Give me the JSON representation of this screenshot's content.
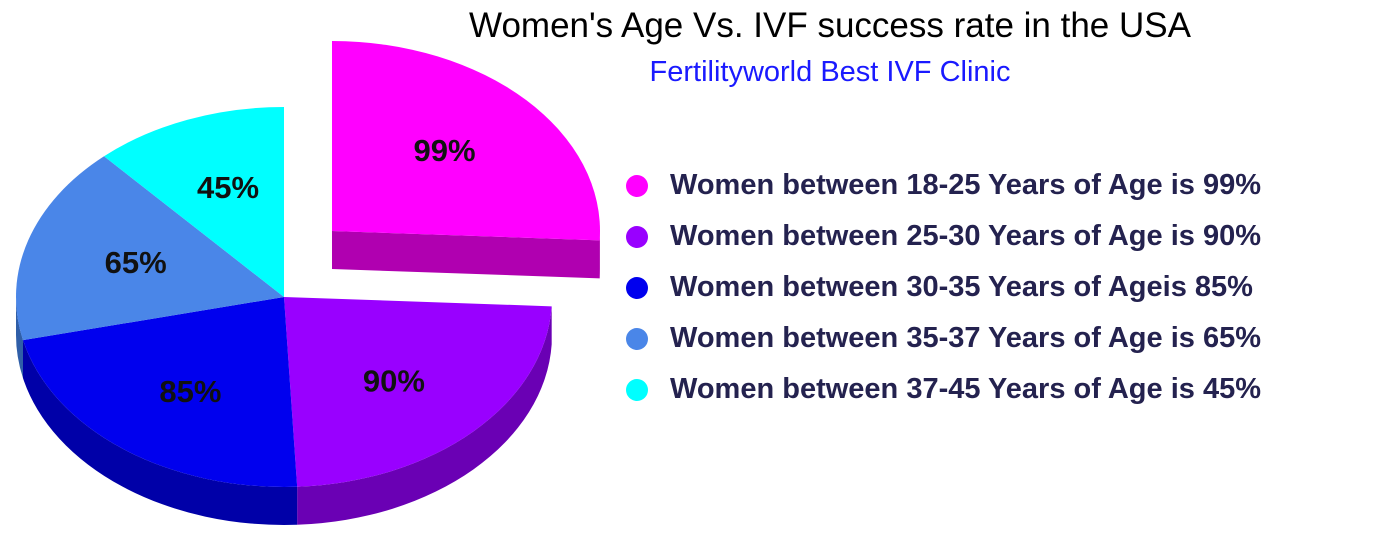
{
  "chart_data": {
    "type": "pie",
    "title": "Women's Age Vs. IVF success rate in the USA",
    "subtitle": "Fertilityworld Best IVF Clinic",
    "slices": [
      {
        "label": "Women between 18-25 Years of Age is 99%",
        "value": 99,
        "data_label": "99%",
        "color": "#ff00ff",
        "side_color": "#b000b0",
        "exploded": true
      },
      {
        "label": "Women between 25-30 Years of Age is 90%",
        "value": 90,
        "data_label": "90%",
        "color": "#9900ff",
        "side_color": "#6a00b4",
        "exploded": false
      },
      {
        "label": "Women between 30-35 Years of Ageis 85%",
        "value": 85,
        "data_label": "85%",
        "color": "#0000ee",
        "side_color": "#0000a8",
        "exploded": false
      },
      {
        "label": "Women between 35-37 Years of Age is 65%",
        "value": 65,
        "data_label": "65%",
        "color": "#4a86e8",
        "side_color": "#2f5ea8",
        "exploded": false
      },
      {
        "label": "Women between 37-45 Years of Age is 45%",
        "value": 45,
        "data_label": "45%",
        "color": "#00ffff",
        "side_color": "#00b0b0",
        "exploded": false
      }
    ],
    "legend_position": "right",
    "style": "3d-exploded"
  }
}
